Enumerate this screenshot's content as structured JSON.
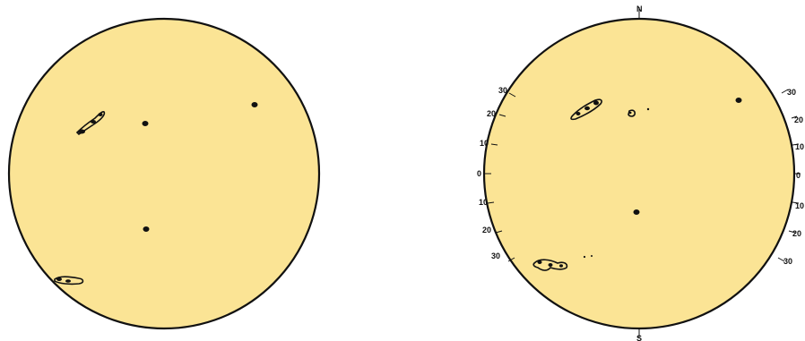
{
  "colors": {
    "disk_fill": "#fbe495",
    "outline": "#111111",
    "background": "#ffffff"
  },
  "left_disk": {
    "description_hidden": ""
  },
  "right_disk": {
    "pole_labels": {
      "north": "N",
      "south": "S"
    },
    "lat_labels_left": [
      "30",
      "20",
      "10",
      "0",
      "10",
      "20",
      "30"
    ],
    "lat_labels_right": [
      "30",
      "20",
      "10",
      "0",
      "10",
      "20",
      "30"
    ]
  }
}
